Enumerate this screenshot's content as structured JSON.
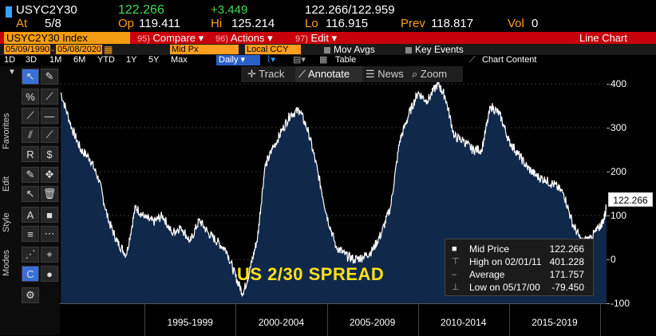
{
  "quote": {
    "ticker": "USYC2Y30",
    "last": "122.266",
    "change": "+3.449",
    "bid_ask": "122.266/122.959",
    "at_label": "At",
    "date": "5/8",
    "open_label": "Op",
    "open": "119.411",
    "high_label": "Hi",
    "high": "125.214",
    "low_label": "Lo",
    "low": "116.915",
    "prev_label": "Prev",
    "prev": "118.817",
    "vol_label": "Vol",
    "vol": "0"
  },
  "cmdbar": {
    "security": "USYC2Y30 Index",
    "compare_num": "95)",
    "compare": "Compare",
    "actions_num": "96)",
    "actions": "Actions",
    "edit_num": "97)",
    "edit": "Edit",
    "view": "Line Chart"
  },
  "params": {
    "start_date": "05/09/1990",
    "end_date": "05/08/2020",
    "field": "Mid Px",
    "currency": "Local CCY",
    "mov_avgs": "Mov Avgs",
    "key_events": "Key Events"
  },
  "ranges": {
    "items": [
      "1D",
      "3D",
      "1M",
      "6M",
      "YTD",
      "1Y",
      "5Y",
      "Max"
    ],
    "frequency": "Daily",
    "table": "Table",
    "chart_content": "Chart Content"
  },
  "toolbar": {
    "favorites": "Favorites",
    "edit": "Edit",
    "style": "Style",
    "modes": "Modes"
  },
  "chart_tools": {
    "track": "Track",
    "annotate": "Annotate",
    "news": "News",
    "zoom": "Zoom"
  },
  "annotation": "US 2/30 SPREAD",
  "legend": {
    "mid_label": "Mid Price",
    "mid_value": "122.266",
    "high_label": "High on 02/01/11",
    "high_value": "401.228",
    "avg_label": "Average",
    "avg_value": "171.757",
    "low_label": "Low on 05/17/00",
    "low_value": "-79.450"
  },
  "last_price_label": "122.266",
  "colors": {
    "background": "#000000",
    "line": "#ffffff",
    "fill": "#10284a",
    "amber": "#ff9e1f",
    "red_bar": "#c8000b",
    "annotation": "#ffe01a"
  },
  "chart_data": {
    "type": "area",
    "title": "",
    "xlabel": "",
    "ylabel": "",
    "ylim": [
      -100,
      440
    ],
    "yticks": [
      400,
      300,
      200,
      100,
      0,
      -100
    ],
    "xlim": [
      1990.35,
      2020.35
    ],
    "x_categories": [
      "1995-1999",
      "2000-2004",
      "2005-2009",
      "2010-2014",
      "2015-2019"
    ],
    "x": [
      1990.4,
      1991.0,
      1991.5,
      1992.0,
      1992.5,
      1993.0,
      1993.5,
      1994.0,
      1994.5,
      1995.0,
      1995.5,
      1996.0,
      1996.5,
      1997.0,
      1997.5,
      1998.0,
      1998.5,
      1999.0,
      1999.5,
      2000.0,
      2000.4,
      2000.8,
      2001.2,
      2001.6,
      2002.0,
      2002.5,
      2003.0,
      2003.5,
      2004.0,
      2004.5,
      2005.0,
      2005.5,
      2006.0,
      2006.5,
      2007.0,
      2007.5,
      2008.0,
      2008.5,
      2009.0,
      2009.5,
      2010.0,
      2010.5,
      2011.1,
      2011.5,
      2012.0,
      2012.5,
      2013.0,
      2013.5,
      2014.0,
      2014.5,
      2015.0,
      2015.5,
      2016.0,
      2016.5,
      2017.0,
      2017.5,
      2018.0,
      2018.5,
      2019.0,
      2019.5,
      2019.9,
      2020.2,
      2020.35
    ],
    "y": [
      380,
      300,
      250,
      230,
      180,
      90,
      40,
      10,
      120,
      95,
      85,
      100,
      60,
      75,
      40,
      90,
      60,
      40,
      20,
      -40,
      -79,
      -20,
      50,
      210,
      250,
      290,
      330,
      340,
      290,
      200,
      100,
      30,
      10,
      0,
      5,
      20,
      60,
      120,
      270,
      330,
      380,
      360,
      401,
      370,
      280,
      270,
      250,
      250,
      350,
      330,
      270,
      240,
      210,
      190,
      180,
      170,
      150,
      80,
      40,
      50,
      70,
      90,
      122
    ]
  }
}
